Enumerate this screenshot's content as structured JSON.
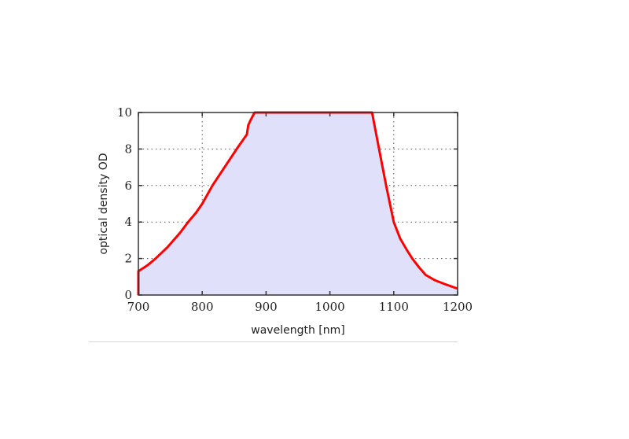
{
  "chart_data": {
    "type": "area",
    "title": "",
    "xlabel": "wavelength [nm]",
    "ylabel": "optical density OD",
    "xlim": [
      700,
      1200
    ],
    "ylim": [
      0,
      10
    ],
    "xticks": [
      700,
      800,
      900,
      1000,
      1100,
      1200
    ],
    "yticks": [
      0,
      2,
      4,
      6,
      8,
      10
    ],
    "grid": true,
    "grid_style": "dotted",
    "legend": null,
    "series": [
      {
        "name": "optical density",
        "line_color": "#ff0000",
        "fill_color": "#e0e0fa",
        "x": [
          700,
          700,
          715,
          727,
          745,
          765,
          778,
          790,
          800,
          816,
          835,
          854,
          870,
          872,
          876,
          882,
          900,
          950,
          1000,
          1050,
          1066,
          1077,
          1088,
          1100,
          1110,
          1120,
          1129,
          1140,
          1150,
          1165,
          1180,
          1200
        ],
        "y": [
          0,
          1.3,
          1.65,
          2.0,
          2.6,
          3.4,
          4.0,
          4.5,
          5.0,
          6.0,
          7.0,
          8.0,
          8.8,
          9.3,
          9.6,
          10.0,
          10.0,
          10.0,
          10.0,
          10.0,
          10.0,
          8.0,
          6.0,
          4.0,
          3.1,
          2.5,
          2.0,
          1.5,
          1.1,
          0.8,
          0.6,
          0.35
        ]
      }
    ]
  }
}
